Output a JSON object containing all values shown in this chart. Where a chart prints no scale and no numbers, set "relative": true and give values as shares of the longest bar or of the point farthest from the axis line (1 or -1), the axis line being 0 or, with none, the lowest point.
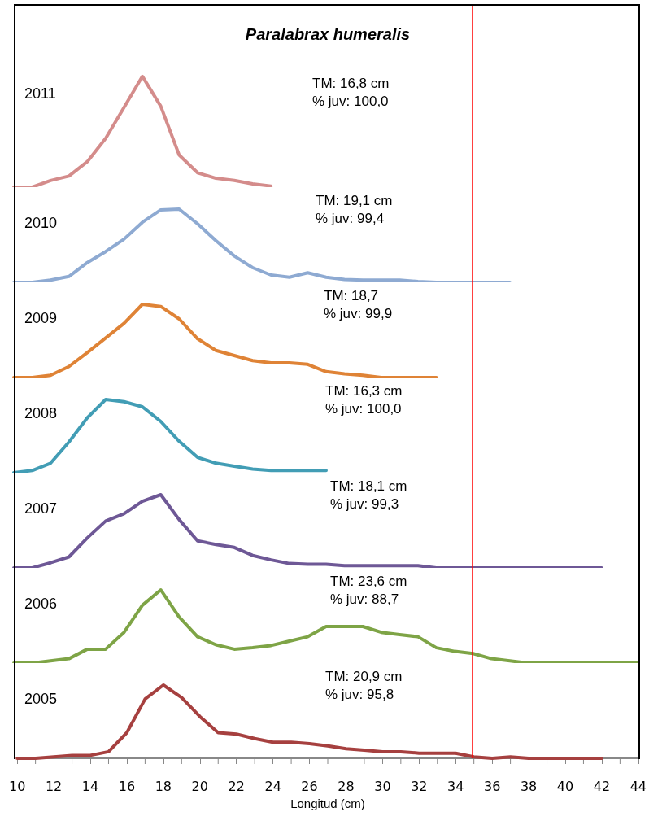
{
  "chart_data": [
    {
      "type": "line",
      "title": "Paralabrax humeralis",
      "relative": true,
      "tick_labels": false,
      "marker": "none",
      "line_style": "solid",
      "grid": false,
      "annotations": [
        "2011",
        "TM: 16,8 cm\n% juv: 100,0"
      ],
      "categories": [
        null,
        null,
        null,
        null,
        null,
        null,
        null,
        null,
        null,
        null,
        null,
        null,
        null,
        null,
        null,
        null,
        null,
        null,
        null,
        null,
        null,
        null,
        null,
        null,
        null,
        null,
        null,
        null,
        null,
        null,
        null,
        null,
        null,
        null,
        null
      ],
      "series": [
        {
          "color": "#d48c8b",
          "values": [
            0,
            0,
            0.06,
            0.1,
            0.23,
            0.44,
            0.72,
            1,
            0.73,
            0.29,
            0.13,
            0.08,
            0.06,
            0.03,
            0.01,
            null,
            null,
            null,
            null,
            null,
            null,
            null,
            null,
            null,
            null,
            null,
            null,
            null,
            null,
            null,
            null,
            null,
            null,
            null,
            null
          ]
        }
      ]
    },
    {
      "type": "line",
      "relative": true,
      "tick_labels": false,
      "marker": "none",
      "line_style": "solid",
      "grid": false,
      "annotations": [
        "2010",
        "TM: 19,1 cm\n% juv: 99,4"
      ],
      "categories": [
        null,
        null,
        null,
        null,
        null,
        null,
        null,
        null,
        null,
        null,
        null,
        null,
        null,
        null,
        null,
        null,
        null,
        null,
        null,
        null,
        null,
        null,
        null,
        null,
        null,
        null,
        null,
        null,
        null,
        null,
        null,
        null,
        null,
        null,
        null
      ],
      "series": [
        {
          "color": "#8eaad2",
          "values": [
            0,
            0,
            0.03,
            0.08,
            0.27,
            0.42,
            0.59,
            0.82,
            0.99,
            1,
            0.8,
            0.57,
            0.36,
            0.2,
            0.1,
            0.07,
            0.13,
            0.07,
            0.04,
            0.03,
            0.03,
            0.03,
            0.01,
            0,
            0,
            0,
            0,
            0,
            null,
            null,
            null,
            null,
            null,
            null,
            null
          ]
        }
      ]
    },
    {
      "type": "line",
      "relative": true,
      "tick_labels": false,
      "marker": "none",
      "line_style": "solid",
      "grid": false,
      "annotations": [
        "2009",
        "TM: 18,7\n% juv: 99,9"
      ],
      "categories": [
        null,
        null,
        null,
        null,
        null,
        null,
        null,
        null,
        null,
        null,
        null,
        null,
        null,
        null,
        null,
        null,
        null,
        null,
        null,
        null,
        null,
        null,
        null,
        null,
        null,
        null,
        null,
        null,
        null,
        null,
        null,
        null,
        null,
        null,
        null
      ],
      "series": [
        {
          "color": "#df8336",
          "values": [
            0,
            0,
            0.03,
            0.15,
            0.34,
            0.54,
            0.74,
            1,
            0.97,
            0.8,
            0.53,
            0.37,
            0.3,
            0.23,
            0.2,
            0.2,
            0.18,
            0.08,
            0.05,
            0.03,
            0,
            0,
            0,
            0,
            null,
            null,
            null,
            null,
            null,
            null,
            null,
            null,
            null,
            null,
            null
          ]
        }
      ]
    },
    {
      "type": "line",
      "relative": true,
      "tick_labels": false,
      "marker": "none",
      "line_style": "solid",
      "grid": false,
      "annotations": [
        "2008",
        "TM: 16,3 cm\n% juv: 100,0"
      ],
      "categories": [
        null,
        null,
        null,
        null,
        null,
        null,
        null,
        null,
        null,
        null,
        null,
        null,
        null,
        null,
        null,
        null,
        null,
        null,
        null,
        null,
        null,
        null,
        null,
        null,
        null,
        null,
        null,
        null,
        null,
        null,
        null,
        null,
        null,
        null,
        null
      ],
      "series": [
        {
          "color": "#429db5",
          "values": [
            0,
            0.03,
            0.13,
            0.42,
            0.75,
            1,
            0.97,
            0.9,
            0.7,
            0.43,
            0.21,
            0.13,
            0.09,
            0.05,
            0.03,
            0.03,
            0.03,
            0.03,
            null,
            null,
            null,
            null,
            null,
            null,
            null,
            null,
            null,
            null,
            null,
            null,
            null,
            null,
            null,
            null,
            null
          ]
        }
      ]
    },
    {
      "type": "line",
      "relative": true,
      "tick_labels": false,
      "marker": "none",
      "line_style": "solid",
      "grid": false,
      "annotations": [
        "2007",
        "TM: 18,1 cm\n% juv: 99,3"
      ],
      "categories": [
        null,
        null,
        null,
        null,
        null,
        null,
        null,
        null,
        null,
        null,
        null,
        null,
        null,
        null,
        null,
        null,
        null,
        null,
        null,
        null,
        null,
        null,
        null,
        null,
        null,
        null,
        null,
        null,
        null,
        null,
        null,
        null,
        null,
        null,
        null
      ],
      "series": [
        {
          "color": "#6e5896",
          "values": [
            0,
            0,
            0.07,
            0.15,
            0.41,
            0.64,
            0.74,
            0.91,
            1,
            0.66,
            0.37,
            0.32,
            0.28,
            0.17,
            0.11,
            0.06,
            0.05,
            0.05,
            0.03,
            0.03,
            0.03,
            0.03,
            0.03,
            0,
            0,
            0,
            0,
            0,
            0,
            0,
            0,
            0,
            0,
            null,
            null
          ]
        }
      ]
    },
    {
      "type": "line",
      "relative": true,
      "tick_labels": false,
      "marker": "none",
      "line_style": "solid",
      "grid": false,
      "annotations": [
        "2006",
        "TM: 23,6 cm\n% juv: 88,7"
      ],
      "categories": [
        null,
        null,
        null,
        null,
        null,
        null,
        null,
        null,
        null,
        null,
        null,
        null,
        null,
        null,
        null,
        null,
        null,
        null,
        null,
        null,
        null,
        null,
        null,
        null,
        null,
        null,
        null,
        null,
        null,
        null,
        null,
        null,
        null,
        null,
        null
      ],
      "series": [
        {
          "color": "#7ea446",
          "values": [
            0,
            0,
            0.03,
            0.06,
            0.19,
            0.19,
            0.42,
            0.79,
            1,
            0.63,
            0.36,
            0.25,
            0.19,
            0.21,
            0.24,
            0.3,
            0.36,
            0.5,
            0.5,
            0.5,
            0.42,
            0.39,
            0.36,
            0.21,
            0.16,
            0.13,
            0.06,
            0.03,
            0,
            0,
            0,
            0,
            0,
            0,
            0
          ]
        }
      ]
    },
    {
      "type": "line",
      "xlabel": "Longitud (cm)",
      "relative": true,
      "xlim": [
        10,
        44
      ],
      "xticks": [
        10,
        12,
        14,
        16,
        18,
        20,
        22,
        24,
        26,
        28,
        30,
        32,
        34,
        36,
        38,
        40,
        42,
        44
      ],
      "marker": "none",
      "line_style": "solid",
      "grid": false,
      "ref_lines": [
        {
          "axis": "x",
          "value": 34.9,
          "color": "#ff0000"
        }
      ],
      "annotations": [
        "2005",
        "TM: 20,9 cm\n% juv: 95,8"
      ],
      "series": [
        {
          "color": "#a6403f",
          "x": [
            10,
            11,
            12,
            13,
            14,
            15,
            16,
            17,
            18,
            19,
            20,
            21,
            22,
            23,
            24,
            25,
            26,
            27,
            28,
            29,
            30,
            31,
            32,
            33,
            34,
            35,
            36,
            37,
            38,
            39,
            40,
            41,
            42
          ],
          "values": [
            0,
            0,
            0.02,
            0.04,
            0.04,
            0.09,
            0.35,
            0.81,
            1,
            0.83,
            0.57,
            0.35,
            0.33,
            0.27,
            0.22,
            0.22,
            0.2,
            0.17,
            0.13,
            0.11,
            0.09,
            0.09,
            0.07,
            0.07,
            0.07,
            0.02,
            0,
            0.02,
            0,
            0,
            0,
            0,
            0
          ]
        }
      ]
    }
  ]
}
